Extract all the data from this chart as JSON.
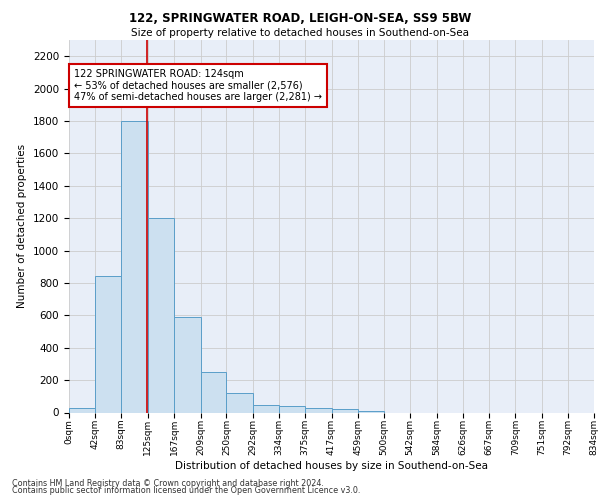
{
  "title1": "122, SPRINGWATER ROAD, LEIGH-ON-SEA, SS9 5BW",
  "title2": "Size of property relative to detached houses in Southend-on-Sea",
  "xlabel": "Distribution of detached houses by size in Southend-on-Sea",
  "ylabel": "Number of detached properties",
  "footnote1": "Contains HM Land Registry data © Crown copyright and database right 2024.",
  "footnote2": "Contains public sector information licensed under the Open Government Licence v3.0.",
  "bin_edges": [
    0,
    42,
    83,
    125,
    167,
    209,
    250,
    292,
    334,
    375,
    417,
    459,
    500,
    542,
    584,
    626,
    667,
    709,
    751,
    792,
    834
  ],
  "bar_heights": [
    25,
    840,
    1800,
    1200,
    590,
    250,
    120,
    45,
    40,
    30,
    20,
    10,
    0,
    0,
    0,
    0,
    0,
    0,
    0,
    0
  ],
  "bar_color": "#cce0f0",
  "bar_edge_color": "#5a9ec9",
  "grid_color": "#cccccc",
  "background_color": "#e8eef8",
  "red_line_x": 124,
  "annotation_text": "122 SPRINGWATER ROAD: 124sqm\n← 53% of detached houses are smaller (2,576)\n47% of semi-detached houses are larger (2,281) →",
  "annotation_box_color": "#ffffff",
  "annotation_box_edge_color": "#cc0000",
  "ylim": [
    0,
    2300
  ],
  "yticks": [
    0,
    200,
    400,
    600,
    800,
    1000,
    1200,
    1400,
    1600,
    1800,
    2000,
    2200
  ]
}
